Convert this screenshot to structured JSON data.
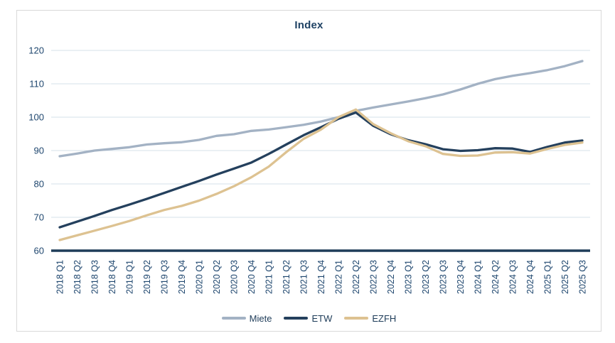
{
  "chart_data": {
    "type": "line",
    "title": "Index",
    "xlabel": "",
    "ylabel": "",
    "ylim": [
      60,
      120
    ],
    "yticks": [
      60,
      70,
      80,
      90,
      100,
      110,
      120
    ],
    "grid": true,
    "legend_position": "bottom",
    "categories": [
      "2018 Q1",
      "2018 Q2",
      "2018 Q3",
      "2018 Q4",
      "2019 Q1",
      "2019 Q2",
      "2019 Q3",
      "2019 Q4",
      "2020 Q1",
      "2020 Q2",
      "2020 Q3",
      "2020 Q4",
      "2021 Q1",
      "2021 Q2",
      "2021 Q3",
      "2021 Q4",
      "2022 Q1",
      "2022 Q2",
      "2022 Q3",
      "2022 Q4",
      "2023 Q1",
      "2023 Q2",
      "2023 Q3",
      "2023 Q4",
      "2024 Q1",
      "2024 Q2",
      "2024 Q3",
      "2024 Q4",
      "2025 Q1",
      "2025 Q2",
      "2025 Q3"
    ],
    "series": [
      {
        "name": "Miete",
        "color": "#a3b2c4",
        "values": [
          88.3,
          89.1,
          90.0,
          90.5,
          91.0,
          91.8,
          92.2,
          92.5,
          93.2,
          94.4,
          94.9,
          95.9,
          96.3,
          97.0,
          97.7,
          98.7,
          100.0,
          101.9,
          102.9,
          103.8,
          104.7,
          105.7,
          106.8,
          108.3,
          110.0,
          111.4,
          112.4,
          113.2,
          114.1,
          115.3,
          116.8
        ]
      },
      {
        "name": "ETW",
        "color": "#24405d",
        "values": [
          67.0,
          68.7,
          70.4,
          72.2,
          73.8,
          75.5,
          77.3,
          79.1,
          80.9,
          82.8,
          84.6,
          86.4,
          89.0,
          91.8,
          94.6,
          97.0,
          99.5,
          101.4,
          97.4,
          94.9,
          93.1,
          91.9,
          90.4,
          89.9,
          90.1,
          90.7,
          90.6,
          89.6,
          91.1,
          92.4,
          93.0
        ]
      },
      {
        "name": "EZFH",
        "color": "#ddc291",
        "values": [
          63.2,
          64.6,
          66.0,
          67.4,
          68.9,
          70.6,
          72.2,
          73.4,
          75.0,
          77.0,
          79.3,
          82.0,
          85.2,
          89.5,
          93.5,
          96.3,
          100.0,
          102.3,
          97.9,
          95.2,
          92.8,
          91.3,
          89.0,
          88.4,
          88.5,
          89.4,
          89.5,
          89.1,
          90.5,
          91.7,
          92.4
        ]
      }
    ],
    "colors": {
      "axis_line": "#1e3c59",
      "gridline": "#d6e0ea",
      "tick_text": "#1e466e",
      "title_text": "#1f4264",
      "legend_text": "#1e3c59",
      "frame_border": "#d9d9d9",
      "background": "#ffffff"
    }
  }
}
